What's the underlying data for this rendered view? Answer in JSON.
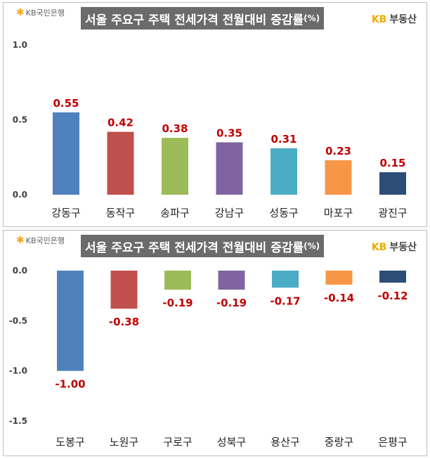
{
  "logo_left": "KB국민은행",
  "logo_right": {
    "kb": "KB",
    "name": "부동산"
  },
  "chart_data": [
    {
      "type": "bar",
      "title": "서울 주요구 주택 전세가격 전월대비 증감률",
      "title_unit": "(%)",
      "categories": [
        "강동구",
        "동작구",
        "송파구",
        "강남구",
        "성동구",
        "마포구",
        "광진구"
      ],
      "values": [
        0.55,
        0.42,
        0.38,
        0.35,
        0.31,
        0.23,
        0.15
      ],
      "value_labels": [
        "0.55",
        "0.42",
        "0.38",
        "0.35",
        "0.31",
        "0.23",
        "0.15"
      ],
      "yticks": [
        "0.0",
        "0.5",
        "1.0"
      ],
      "ylim": [
        0,
        1.0
      ],
      "colors": [
        "#4f81bd",
        "#c0504d",
        "#9bbb59",
        "#8064a2",
        "#4bacc6",
        "#f79646",
        "#2c4d75"
      ],
      "label_color": "#c00000",
      "grid": false
    },
    {
      "type": "bar",
      "title": "서울 주요구 주택 전세가격 전월대비 증감률",
      "title_unit": "(%)",
      "categories": [
        "도봉구",
        "노원구",
        "구로구",
        "성북구",
        "용산구",
        "중랑구",
        "은평구"
      ],
      "values": [
        -1.0,
        -0.38,
        -0.19,
        -0.19,
        -0.17,
        -0.14,
        -0.12
      ],
      "value_labels": [
        "-1.00",
        "-0.38",
        "-0.19",
        "-0.19",
        "-0.17",
        "-0.14",
        "-0.12"
      ],
      "yticks": [
        "0.0",
        "-0.5",
        "-1.0",
        "-1.5"
      ],
      "ylim": [
        -1.5,
        0
      ],
      "colors": [
        "#4f81bd",
        "#c0504d",
        "#9bbb59",
        "#8064a2",
        "#4bacc6",
        "#f79646",
        "#2c4d75"
      ],
      "label_color": "#c00000",
      "grid": false
    }
  ]
}
